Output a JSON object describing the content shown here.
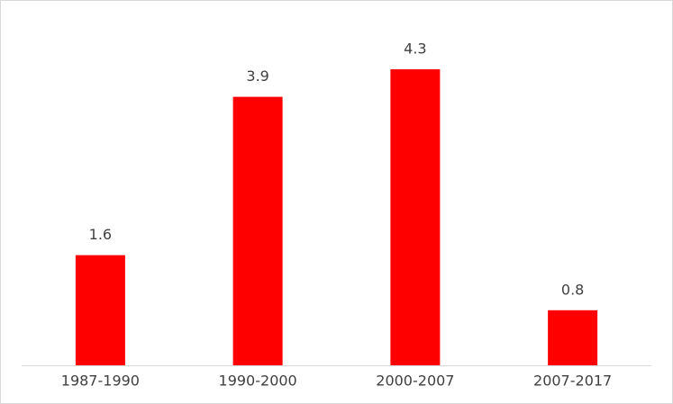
{
  "chart_data": {
    "type": "bar",
    "categories": [
      "1987-1990",
      "1990-2000",
      "2000-2007",
      "2007-2017"
    ],
    "values": [
      1.6,
      3.9,
      4.3,
      0.8
    ],
    "color": "#ff0000"
  }
}
